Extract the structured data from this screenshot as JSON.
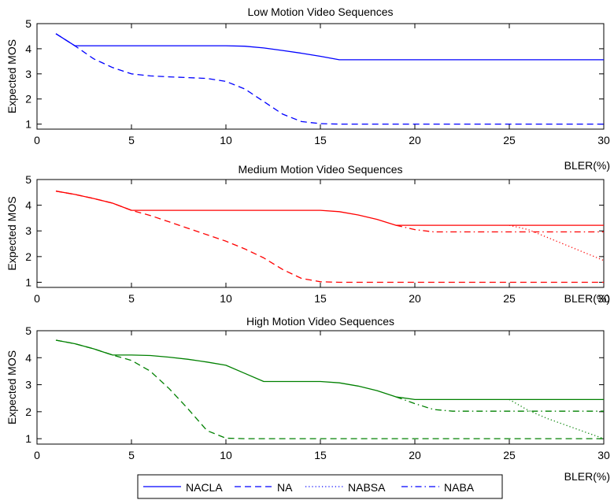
{
  "chart_data": [
    {
      "type": "line",
      "title": "Low Motion Video Sequences",
      "xlabel": "BLER(%)",
      "ylabel": "Expected MOS",
      "xlim": [
        0,
        30
      ],
      "ylim": [
        0.8,
        5
      ],
      "xticks": [
        0,
        5,
        10,
        15,
        20,
        25,
        30
      ],
      "yticks": [
        1,
        2,
        3,
        4,
        5
      ],
      "color": "#0000ff",
      "series": [
        {
          "name": "NACLA",
          "style": "solid",
          "x": [
            1,
            2,
            4,
            6,
            8,
            10,
            11,
            12,
            13,
            14,
            15,
            16,
            18,
            20,
            25,
            30
          ],
          "y": [
            4.6,
            4.12,
            4.12,
            4.12,
            4.12,
            4.12,
            4.1,
            4.03,
            3.93,
            3.82,
            3.7,
            3.56,
            3.56,
            3.56,
            3.56,
            3.56
          ]
        },
        {
          "name": "NA",
          "style": "dashed",
          "x": [
            1,
            2,
            3,
            4,
            5,
            6,
            7,
            8,
            9,
            10,
            11,
            12,
            13,
            14,
            15,
            16,
            20,
            25,
            30
          ],
          "y": [
            4.6,
            4.12,
            3.6,
            3.25,
            3.0,
            2.92,
            2.88,
            2.85,
            2.82,
            2.7,
            2.4,
            1.9,
            1.4,
            1.1,
            1.02,
            1.0,
            1.0,
            1.0,
            1.0
          ]
        },
        {
          "name": "NABSA",
          "style": "dotted",
          "x": [],
          "y": []
        },
        {
          "name": "NABA",
          "style": "dashdot",
          "x": [],
          "y": []
        }
      ]
    },
    {
      "type": "line",
      "title": "Medium Motion Video Sequences",
      "xlabel": "BLER(%)",
      "ylabel": "Expected MOS",
      "xlim": [
        0,
        30
      ],
      "ylim": [
        0.8,
        5
      ],
      "xticks": [
        0,
        5,
        10,
        15,
        20,
        25,
        30
      ],
      "yticks": [
        1,
        2,
        3,
        4,
        5
      ],
      "color": "#ff0000",
      "series": [
        {
          "name": "NACLA",
          "style": "solid",
          "x": [
            1,
            2,
            3,
            4,
            5,
            6,
            8,
            10,
            12,
            14,
            15,
            16,
            17,
            18,
            19,
            20,
            25,
            30
          ],
          "y": [
            4.55,
            4.42,
            4.26,
            4.08,
            3.8,
            3.8,
            3.8,
            3.8,
            3.8,
            3.8,
            3.8,
            3.75,
            3.62,
            3.45,
            3.22,
            3.22,
            3.22,
            3.22
          ]
        },
        {
          "name": "NA",
          "style": "dashed",
          "x": [
            1,
            2,
            3,
            4,
            5,
            6,
            7,
            8,
            9,
            10,
            11,
            12,
            13,
            14,
            15,
            16,
            20,
            25,
            30
          ],
          "y": [
            4.55,
            4.42,
            4.26,
            4.08,
            3.8,
            3.6,
            3.35,
            3.1,
            2.85,
            2.6,
            2.3,
            1.95,
            1.5,
            1.15,
            1.02,
            1.0,
            1.0,
            1.0,
            1.0
          ]
        },
        {
          "name": "NABSA",
          "style": "dotted",
          "x": [
            25,
            26,
            27,
            28,
            29,
            30
          ],
          "y": [
            3.22,
            3.05,
            2.75,
            2.45,
            2.15,
            1.85
          ]
        },
        {
          "name": "NABA",
          "style": "dashdot",
          "x": [
            19,
            20,
            21,
            22,
            25,
            30
          ],
          "y": [
            3.22,
            3.05,
            2.96,
            2.96,
            2.96,
            2.96
          ]
        }
      ]
    },
    {
      "type": "line",
      "title": "High Motion Video Sequences",
      "xlabel": "BLER(%)",
      "ylabel": "Expected MOS",
      "xlim": [
        0,
        30
      ],
      "ylim": [
        0.8,
        5
      ],
      "xticks": [
        0,
        5,
        10,
        15,
        20,
        25,
        30
      ],
      "yticks": [
        1,
        2,
        3,
        4,
        5
      ],
      "color": "#008000",
      "series": [
        {
          "name": "NACLA",
          "style": "solid",
          "x": [
            1,
            2,
            3,
            4,
            5,
            6,
            7,
            8,
            9,
            10,
            11,
            12,
            13,
            14,
            15,
            16,
            17,
            18,
            19,
            20,
            25,
            30
          ],
          "y": [
            4.65,
            4.52,
            4.33,
            4.1,
            4.1,
            4.08,
            4.02,
            3.94,
            3.84,
            3.72,
            3.42,
            3.12,
            3.12,
            3.12,
            3.12,
            3.07,
            2.95,
            2.78,
            2.55,
            2.45,
            2.45,
            2.45
          ]
        },
        {
          "name": "NA",
          "style": "dashed",
          "x": [
            1,
            2,
            3,
            4,
            5,
            6,
            7,
            8,
            9,
            10,
            11,
            15,
            20,
            25,
            30
          ],
          "y": [
            4.65,
            4.52,
            4.33,
            4.1,
            3.9,
            3.5,
            2.85,
            2.1,
            1.3,
            1.02,
            1.0,
            1.0,
            1.0,
            1.0,
            1.0
          ]
        },
        {
          "name": "NABSA",
          "style": "dotted",
          "x": [
            25,
            26,
            27,
            28,
            29,
            30
          ],
          "y": [
            2.45,
            2.05,
            1.75,
            1.5,
            1.25,
            1.0
          ]
        },
        {
          "name": "NABA",
          "style": "dashdot",
          "x": [
            19,
            20,
            21,
            22,
            25,
            30
          ],
          "y": [
            2.55,
            2.3,
            2.08,
            2.02,
            2.02,
            2.02
          ]
        }
      ]
    }
  ],
  "legend": {
    "placement": "bottom-center",
    "color": "#0000ff",
    "entries": [
      {
        "label": "NACLA",
        "style": "solid"
      },
      {
        "label": "NA",
        "style": "dashed"
      },
      {
        "label": "NABSA",
        "style": "dotted"
      },
      {
        "label": "NABA",
        "style": "dashdot"
      }
    ]
  }
}
